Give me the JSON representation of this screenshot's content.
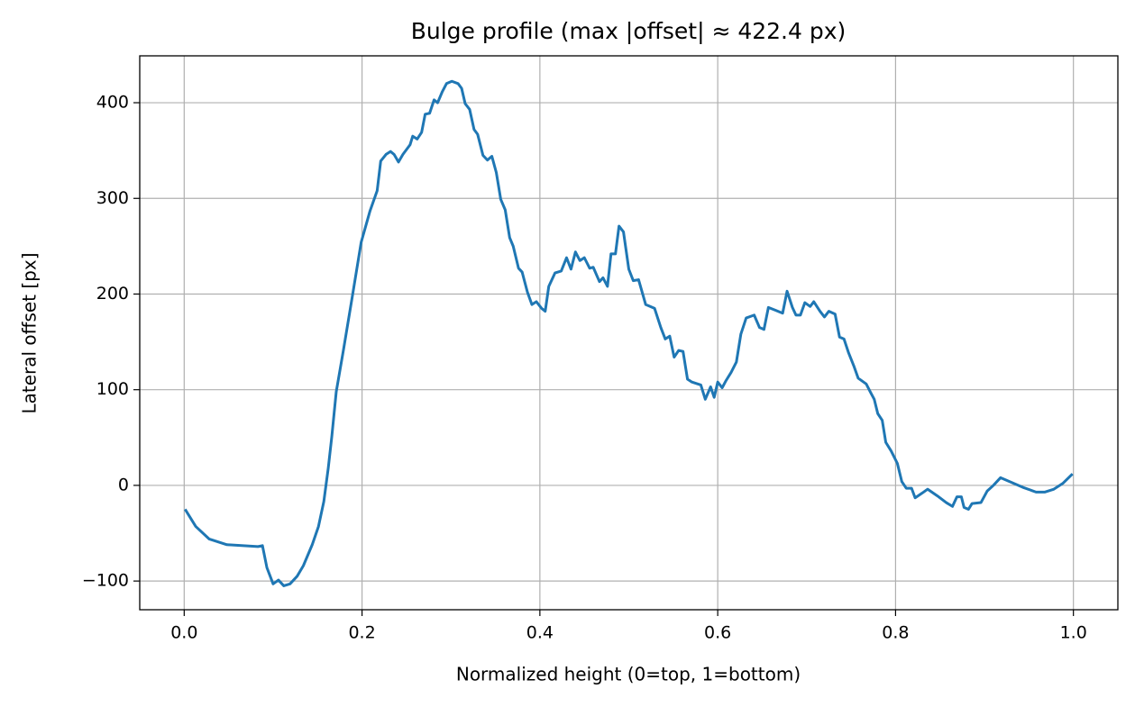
{
  "chart_data": {
    "type": "line",
    "title": "Bulge profile (max |offset| ≈ 422.4 px)",
    "x_label": "Normalized height (0=top, 1=bottom)",
    "y_label": "Lateral offset [px]",
    "x": [
      0.001,
      0.013,
      0.028,
      0.048,
      0.083,
      0.088,
      0.093,
      0.1,
      0.106,
      0.112,
      0.119,
      0.127,
      0.134,
      0.144,
      0.151,
      0.157,
      0.162,
      0.166,
      0.171,
      0.179,
      0.189,
      0.199,
      0.209,
      0.217,
      0.221,
      0.227,
      0.232,
      0.236,
      0.241,
      0.246,
      0.254,
      0.257,
      0.262,
      0.267,
      0.271,
      0.276,
      0.281,
      0.285,
      0.29,
      0.295,
      0.301,
      0.308,
      0.312,
      0.316,
      0.321,
      0.326,
      0.33,
      0.336,
      0.341,
      0.346,
      0.351,
      0.356,
      0.361,
      0.366,
      0.37,
      0.376,
      0.38,
      0.386,
      0.391,
      0.396,
      0.402,
      0.406,
      0.41,
      0.417,
      0.424,
      0.43,
      0.435,
      0.44,
      0.445,
      0.45,
      0.456,
      0.46,
      0.467,
      0.471,
      0.476,
      0.48,
      0.485,
      0.489,
      0.494,
      0.5,
      0.505,
      0.511,
      0.519,
      0.529,
      0.536,
      0.541,
      0.546,
      0.551,
      0.556,
      0.561,
      0.566,
      0.571,
      0.581,
      0.586,
      0.592,
      0.596,
      0.6,
      0.605,
      0.609,
      0.615,
      0.621,
      0.626,
      0.632,
      0.641,
      0.647,
      0.652,
      0.657,
      0.665,
      0.673,
      0.678,
      0.684,
      0.688,
      0.693,
      0.698,
      0.704,
      0.708,
      0.715,
      0.72,
      0.725,
      0.732,
      0.737,
      0.742,
      0.747,
      0.753,
      0.758,
      0.767,
      0.772,
      0.776,
      0.78,
      0.785,
      0.789,
      0.795,
      0.802,
      0.807,
      0.812,
      0.818,
      0.822,
      0.83,
      0.836,
      0.847,
      0.857,
      0.864,
      0.869,
      0.874,
      0.877,
      0.882,
      0.886,
      0.896,
      0.903,
      0.91,
      0.918,
      0.928,
      0.943,
      0.958,
      0.968,
      0.978,
      0.988,
      0.999
    ],
    "series": [
      {
        "name": "offset",
        "color": "#1f77b4",
        "values": [
          -25,
          -43,
          -56,
          -62,
          -64,
          -63,
          -86,
          -103,
          -99,
          -105,
          -103,
          -95,
          -84,
          -62,
          -43,
          -17,
          18,
          51,
          98,
          141,
          197,
          254,
          287,
          308,
          339,
          346,
          349,
          346,
          338,
          346,
          356,
          365,
          362,
          369,
          388,
          389,
          403,
          400,
          411,
          420,
          422.4,
          420,
          415,
          399,
          393,
          372,
          367,
          345,
          340,
          344,
          327,
          299,
          288,
          259,
          250,
          227,
          223,
          202,
          189,
          192,
          185,
          182,
          208,
          222,
          224,
          238,
          226,
          244,
          235,
          238,
          227,
          228,
          213,
          217,
          208,
          242,
          242,
          271,
          265,
          226,
          214,
          215,
          189,
          185,
          165,
          153,
          156,
          134,
          141,
          140,
          111,
          108,
          105,
          90,
          103,
          92,
          108,
          102,
          109,
          118,
          129,
          158,
          175,
          178,
          165,
          163,
          186,
          183,
          180,
          203,
          186,
          178,
          178,
          191,
          187,
          192,
          182,
          176,
          182,
          179,
          155,
          153,
          139,
          125,
          112,
          106,
          97,
          90,
          75,
          68,
          45,
          36,
          23,
          4,
          -3,
          -3,
          -13,
          -8,
          -4,
          -11,
          -18,
          -22,
          -12,
          -12,
          -23,
          -25,
          -19,
          -18,
          -6,
          0,
          8,
          4,
          -2,
          -7,
          -7,
          -4,
          2,
          12
        ]
      }
    ],
    "xlim": [
      -0.05,
      1.05
    ],
    "ylim": [
      -130,
      449
    ],
    "xticks": [
      {
        "value": 0,
        "label": "0.0"
      },
      0.2,
      0.4,
      0.6,
      0.8,
      {
        "value": 1,
        "label": "1.0"
      }
    ],
    "yticks": [
      {
        "value": -100,
        "label": "−100"
      },
      0,
      100,
      200,
      300,
      400
    ],
    "grid": true
  }
}
